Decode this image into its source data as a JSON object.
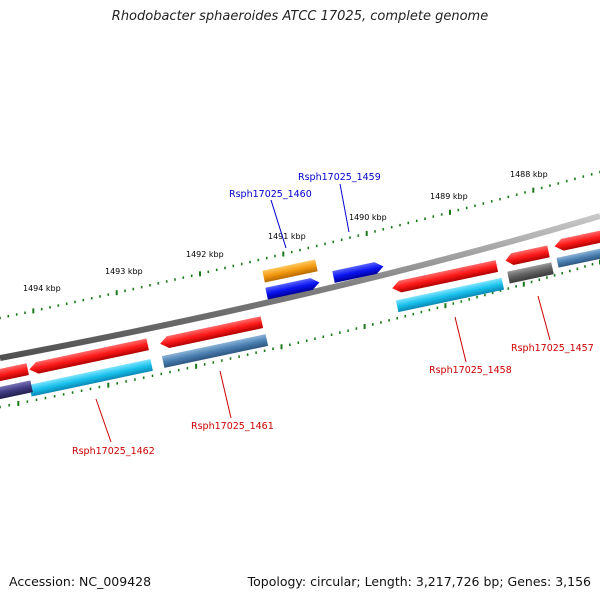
{
  "title": "Rhodobacter sphaeroides ATCC 17025, complete genome",
  "footer": {
    "accession": "Accession: NC_009428",
    "summary": "Topology: circular; Length: 3,217,726 bp; Genes: 3,156"
  },
  "kbp_labels": [
    "1488 kbp",
    "1489 kbp",
    "1490 kbp",
    "1491 kbp",
    "1492 kbp",
    "1493 kbp",
    "1494 kbp"
  ],
  "gene_labels": {
    "rsph1459": "Rsph17025_1459",
    "rsph1460": "Rsph17025_1460",
    "rsph1461": "Rsph17025_1461",
    "rsph1462": "Rsph17025_1462",
    "rsph1458": "Rsph17025_1458",
    "rsph1457": "Rsph17025_1457"
  },
  "colors": {
    "backbone": "#808080",
    "forward_label": "#0000cc",
    "reverse_label": "#cc0000",
    "tick": "#1a7a1a",
    "red": "#ff1a1a",
    "cyan": "#19c2ec",
    "steel": "#4a7fb0",
    "orange": "#f39a10",
    "blue": "#0a14f0",
    "dark_gray": "#606060",
    "navy": "#3e3a80"
  }
}
